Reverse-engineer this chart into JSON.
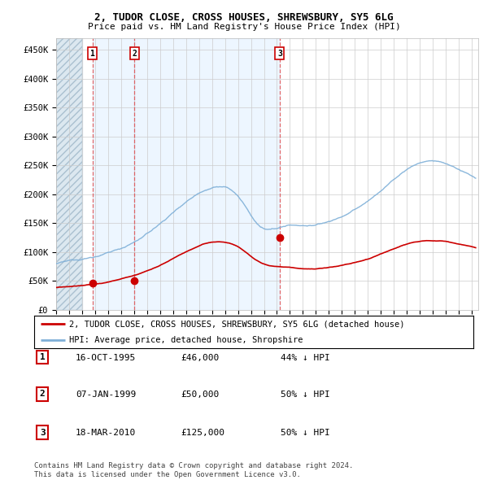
{
  "title1": "2, TUDOR CLOSE, CROSS HOUSES, SHREWSBURY, SY5 6LG",
  "title2": "Price paid vs. HM Land Registry's House Price Index (HPI)",
  "ylabel_ticks": [
    "£0",
    "£50K",
    "£100K",
    "£150K",
    "£200K",
    "£250K",
    "£300K",
    "£350K",
    "£400K",
    "£450K"
  ],
  "ytick_vals": [
    0,
    50000,
    100000,
    150000,
    200000,
    250000,
    300000,
    350000,
    400000,
    450000
  ],
  "ylim": [
    0,
    470000
  ],
  "xlim_start": 1993.0,
  "xlim_end": 2025.5,
  "sale_dates": [
    1995.79,
    1999.02,
    2010.21
  ],
  "sale_prices": [
    46000,
    50000,
    125000
  ],
  "sale_labels": [
    "1",
    "2",
    "3"
  ],
  "legend_line1": "2, TUDOR CLOSE, CROSS HOUSES, SHREWSBURY, SY5 6LG (detached house)",
  "legend_line2": "HPI: Average price, detached house, Shropshire",
  "table_data": [
    [
      "1",
      "16-OCT-1995",
      "£46,000",
      "44% ↓ HPI"
    ],
    [
      "2",
      "07-JAN-1999",
      "£50,000",
      "50% ↓ HPI"
    ],
    [
      "3",
      "18-MAR-2010",
      "£125,000",
      "50% ↓ HPI"
    ]
  ],
  "footnote1": "Contains HM Land Registry data © Crown copyright and database right 2024.",
  "footnote2": "This data is licensed under the Open Government Licence v3.0.",
  "grid_color": "#cccccc",
  "sale_color": "#cc0000",
  "hpi_color": "#7fb0d8",
  "dashed_color": "#e05050",
  "bg_hatch": "#dce8f0",
  "shade_color": "#ddeeff",
  "hpi_seed": 12345,
  "prop_seed": 99
}
